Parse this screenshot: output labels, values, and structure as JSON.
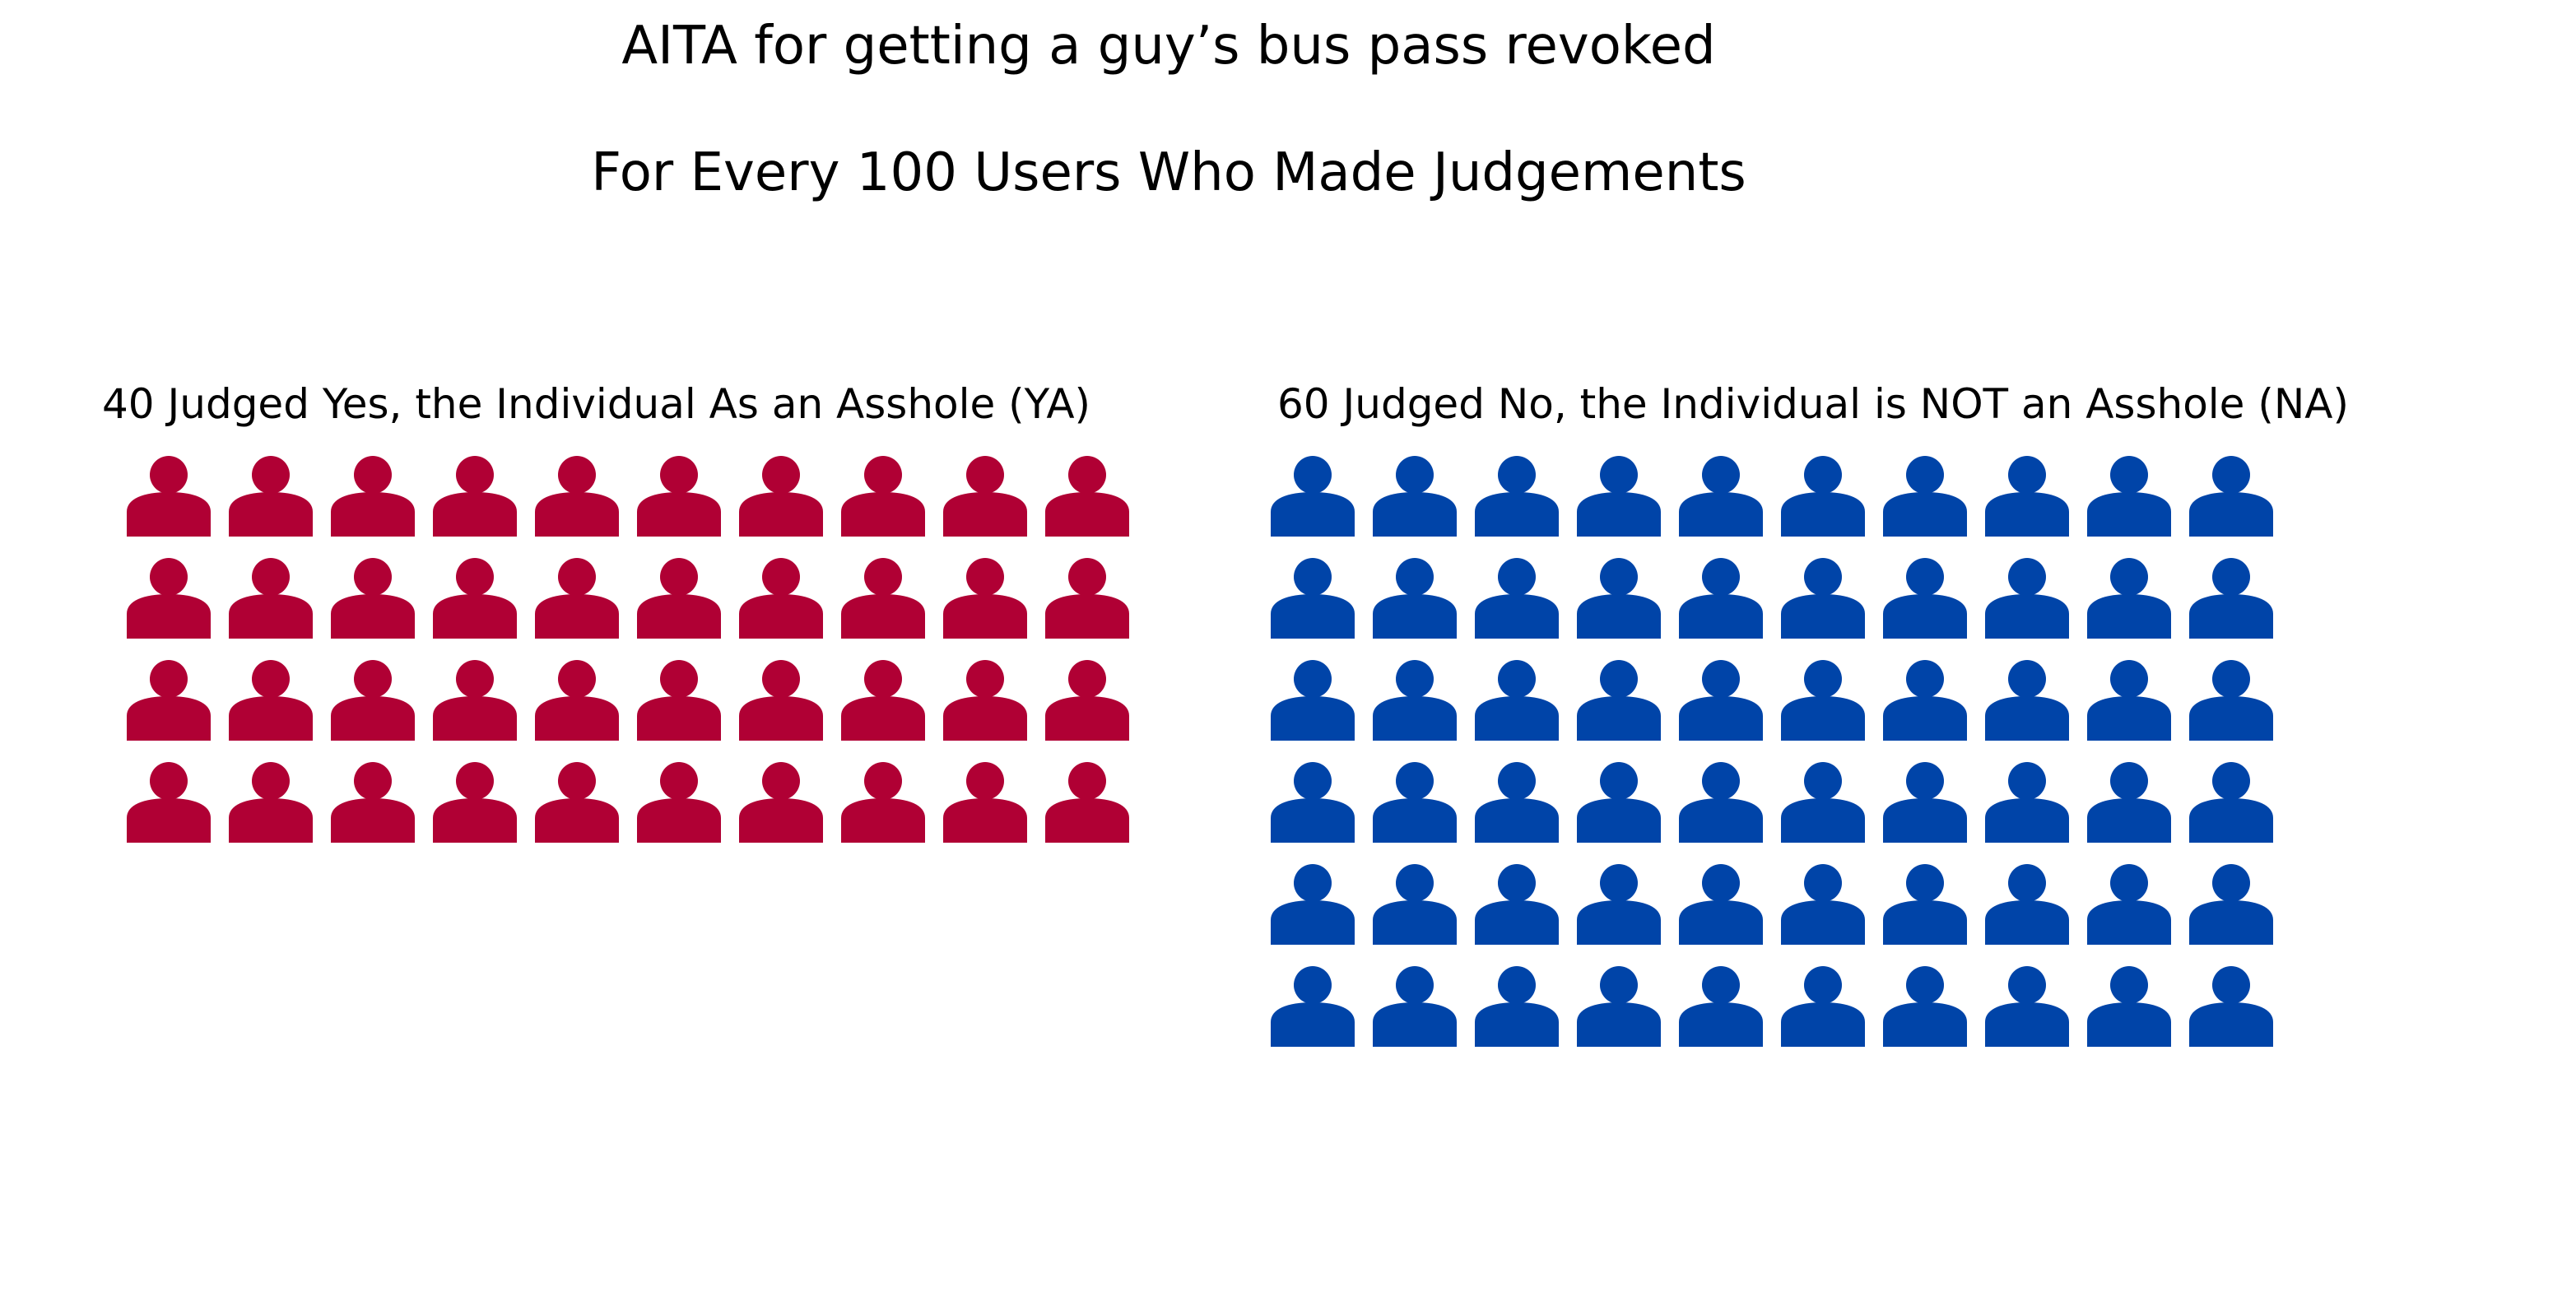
{
  "title": "AITA for getting a guy’s bus pass revoked",
  "subtitle": "For Every 100 Users Who Made Judgements",
  "chart_data": {
    "type": "pictogram",
    "title": "AITA for getting a guy’s bus pass revoked",
    "subtitle": "For Every 100 Users Who Made Judgements",
    "total": 100,
    "icons_per_row": 10,
    "icon": "person-icon",
    "groups": [
      {
        "key": "ya",
        "label": "40 Judged Yes, the Individual As an Asshole (YA)",
        "count": 40,
        "color": "#b00034"
      },
      {
        "key": "na",
        "label": "60 Judged No, the Individual is NOT an Asshole (NA)",
        "count": 60,
        "color": "#0044a8"
      }
    ]
  }
}
